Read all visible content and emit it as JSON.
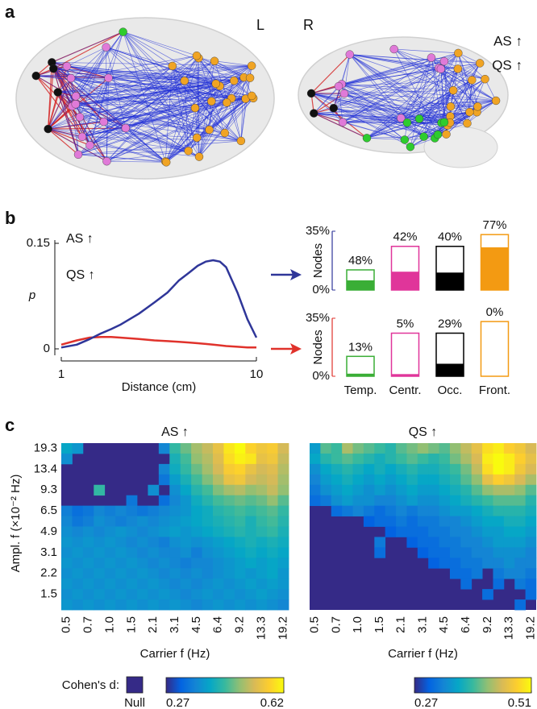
{
  "panel_labels": [
    "a",
    "b",
    "c"
  ],
  "brain": {
    "hemisphere_labels": [
      "L",
      "R"
    ],
    "legend": [
      {
        "name": "AS ↑",
        "color": "#e0322b"
      },
      {
        "name": "QS ↑",
        "color": "#2f3699"
      }
    ]
  },
  "chart_data": [
    {
      "type": "line",
      "x_label": "Distance (cm)",
      "y_label": "p",
      "xscale": "log",
      "x": [
        1,
        1.2,
        1.4,
        1.6,
        1.8,
        2,
        2.5,
        3,
        3.5,
        4,
        4.5,
        5,
        5.5,
        6,
        6.5,
        7,
        8,
        9,
        10
      ],
      "xlim": [
        1,
        10
      ],
      "xticks": [
        1,
        10
      ],
      "ylim": [
        0,
        0.15
      ],
      "yticks": [
        0,
        0.15
      ],
      "legend": "upper left",
      "series": [
        {
          "name": "AS ↑",
          "color": "#e0322b",
          "values": [
            0.006,
            0.012,
            0.016,
            0.017,
            0.017,
            0.016,
            0.014,
            0.012,
            0.011,
            0.01,
            0.009,
            0.008,
            0.007,
            0.006,
            0.005,
            0.004,
            0.003,
            0.002,
            0.002
          ]
        },
        {
          "name": "QS ↑",
          "color": "#2f3699",
          "values": [
            0.002,
            0.006,
            0.014,
            0.022,
            0.028,
            0.034,
            0.05,
            0.066,
            0.08,
            0.097,
            0.108,
            0.118,
            0.124,
            0.126,
            0.124,
            0.116,
            0.08,
            0.042,
            0.016
          ]
        }
      ]
    },
    {
      "type": "bar",
      "color": "#2f3699",
      "y_label": "Nodes",
      "category_colors": [
        "#3aae36",
        "#e0359a",
        "#000000",
        "#f39a12"
      ],
      "region_share": [
        12,
        26,
        26,
        33
      ],
      "values": [
        48,
        42,
        40,
        77
      ],
      "value_labels": [
        "48%",
        "42%",
        "40%",
        "77%"
      ],
      "ylim": [
        0,
        35
      ],
      "yticks": [
        {
          "value": 0,
          "label": "0%"
        },
        {
          "value": 35,
          "label": "35%"
        }
      ]
    },
    {
      "type": "bar",
      "color": "#e0322b",
      "y_label": "Nodes",
      "categories": [
        "Temp.",
        "Centr.",
        "Occ.",
        "Front."
      ],
      "category_colors": [
        "#3aae36",
        "#e0359a",
        "#000000",
        "#f39a12"
      ],
      "region_share": [
        12,
        26,
        26,
        33
      ],
      "values": [
        13,
        5,
        29,
        0
      ],
      "value_labels": [
        "13%",
        "5%",
        "29%",
        "0%"
      ],
      "ylim": [
        0,
        35
      ],
      "yticks": [
        {
          "value": 0,
          "label": "0%"
        },
        {
          "value": 35,
          "label": "35%"
        }
      ]
    },
    {
      "type": "heatmap",
      "title": "AS ↑",
      "title_color": "#e0322b",
      "x_label": "Carrier f (Hz)",
      "y_label": "Ampl. f (×10⁻² Hz)",
      "colorbar_label": "Cohen's d:",
      "null_label": "Null",
      "null_color": "#352a87",
      "colormap": "parula",
      "x_categories": [
        "0.5",
        null,
        "0.7",
        null,
        "1.0",
        null,
        "1.5",
        null,
        "2.1",
        null,
        "3.1",
        null,
        "4.5",
        null,
        "6.4",
        null,
        "9.2",
        null,
        "13.3",
        null,
        "19.2"
      ],
      "y_categories": [
        "19.3",
        null,
        "13.4",
        null,
        "9.3",
        null,
        "6.5",
        null,
        "4.9",
        null,
        "3.1",
        null,
        "2.2",
        null,
        "1.5",
        null
      ],
      "zlim": [
        0.27,
        0.62
      ],
      "zticks": [
        0.27,
        0.62
      ],
      "values": [
        [
          0.4,
          0.38,
          null,
          null,
          null,
          null,
          null,
          null,
          null,
          0.36,
          0.44,
          0.47,
          0.5,
          0.52,
          0.55,
          0.6,
          0.62,
          0.58,
          0.56,
          0.57,
          0.53
        ],
        [
          0.37,
          null,
          null,
          null,
          null,
          null,
          null,
          null,
          null,
          null,
          0.42,
          0.45,
          0.49,
          0.51,
          0.54,
          0.59,
          0.61,
          0.6,
          0.55,
          0.56,
          0.52
        ],
        [
          null,
          null,
          null,
          null,
          null,
          null,
          null,
          null,
          null,
          0.36,
          0.41,
          0.44,
          0.47,
          0.5,
          0.53,
          0.57,
          0.58,
          0.55,
          0.53,
          0.54,
          0.51
        ],
        [
          null,
          null,
          null,
          null,
          null,
          null,
          null,
          null,
          null,
          0.34,
          0.39,
          0.42,
          0.45,
          0.48,
          0.51,
          0.55,
          0.56,
          0.53,
          0.52,
          0.53,
          0.5
        ],
        [
          null,
          null,
          null,
          0.44,
          null,
          null,
          null,
          null,
          0.37,
          null,
          0.37,
          0.4,
          0.43,
          0.45,
          0.48,
          0.5,
          0.51,
          0.49,
          0.5,
          0.52,
          0.49
        ],
        [
          null,
          null,
          null,
          null,
          null,
          null,
          0.34,
          null,
          null,
          0.33,
          0.36,
          0.38,
          0.41,
          0.43,
          0.45,
          0.46,
          0.47,
          0.46,
          0.47,
          0.49,
          0.46
        ],
        [
          0.35,
          0.33,
          0.34,
          0.36,
          0.35,
          0.36,
          0.35,
          0.34,
          0.35,
          0.36,
          0.37,
          0.38,
          0.4,
          0.41,
          0.43,
          0.44,
          0.45,
          0.44,
          0.45,
          0.46,
          0.44
        ],
        [
          0.36,
          0.34,
          0.35,
          0.37,
          0.36,
          0.35,
          0.36,
          0.37,
          0.36,
          0.37,
          0.38,
          0.39,
          0.4,
          0.41,
          0.42,
          0.43,
          0.44,
          0.42,
          0.44,
          0.45,
          0.43
        ],
        [
          0.37,
          0.36,
          0.37,
          0.36,
          0.37,
          0.38,
          0.37,
          0.36,
          0.37,
          0.38,
          0.39,
          0.38,
          0.39,
          0.4,
          0.41,
          0.42,
          0.43,
          0.42,
          0.43,
          0.44,
          0.42
        ],
        [
          0.38,
          0.37,
          0.38,
          0.37,
          0.38,
          0.37,
          0.36,
          0.37,
          0.36,
          0.35,
          0.37,
          0.38,
          0.37,
          0.38,
          0.39,
          0.4,
          0.41,
          0.42,
          0.41,
          0.42,
          0.41
        ],
        [
          0.37,
          0.38,
          0.37,
          0.38,
          0.37,
          0.38,
          0.37,
          0.36,
          0.37,
          0.36,
          0.36,
          0.37,
          0.35,
          0.37,
          0.38,
          0.39,
          0.4,
          0.41,
          0.4,
          0.41,
          0.4
        ],
        [
          0.38,
          0.37,
          0.38,
          0.37,
          0.38,
          0.37,
          0.38,
          0.37,
          0.36,
          0.37,
          0.36,
          0.35,
          0.36,
          0.36,
          0.37,
          0.38,
          0.39,
          0.4,
          0.39,
          0.4,
          0.39
        ],
        [
          0.37,
          0.38,
          0.37,
          0.38,
          0.37,
          0.38,
          0.37,
          0.38,
          0.37,
          0.36,
          0.37,
          0.36,
          0.37,
          0.36,
          0.37,
          0.38,
          0.39,
          0.38,
          0.39,
          0.4,
          0.38
        ],
        [
          0.38,
          0.37,
          0.38,
          0.37,
          0.38,
          0.37,
          0.38,
          0.37,
          0.38,
          0.37,
          0.36,
          0.37,
          0.36,
          0.37,
          0.38,
          0.37,
          0.38,
          0.39,
          0.38,
          0.39,
          0.38
        ],
        [
          0.37,
          0.38,
          0.37,
          0.38,
          0.37,
          0.38,
          0.37,
          0.38,
          0.37,
          0.38,
          0.37,
          0.36,
          0.37,
          0.38,
          0.37,
          0.38,
          0.37,
          0.38,
          0.39,
          0.38,
          0.37
        ],
        [
          0.38,
          0.37,
          0.38,
          0.37,
          0.38,
          0.37,
          0.38,
          0.37,
          0.38,
          0.37,
          0.38,
          0.37,
          0.36,
          0.37,
          0.38,
          0.37,
          0.38,
          0.37,
          0.38,
          0.37,
          0.36
        ]
      ]
    },
    {
      "type": "heatmap",
      "title": "QS ↑",
      "title_color": "#2f3699",
      "x_label": "Carrier f (Hz)",
      "null_color": "#352a87",
      "colormap": "parula",
      "x_categories": [
        "0.5",
        null,
        "0.7",
        null,
        "1.0",
        null,
        "1.5",
        null,
        "2.1",
        null,
        "3.1",
        null,
        "4.5",
        null,
        "6.4",
        null,
        "9.2",
        null,
        "13.3",
        null,
        "19.2"
      ],
      "zlim": [
        0.27,
        0.51
      ],
      "zticks": [
        0.27,
        0.51
      ],
      "values": [
        [
          0.35,
          0.4,
          0.39,
          0.43,
          0.41,
          0.4,
          0.39,
          0.38,
          0.4,
          0.41,
          0.42,
          0.41,
          0.4,
          0.42,
          0.44,
          0.46,
          0.49,
          0.5,
          0.48,
          0.47,
          0.45
        ],
        [
          0.36,
          0.38,
          0.39,
          0.4,
          0.39,
          0.38,
          0.37,
          0.38,
          0.39,
          0.4,
          0.39,
          0.38,
          0.39,
          0.41,
          0.43,
          0.45,
          0.5,
          0.51,
          0.5,
          0.48,
          0.46
        ],
        [
          0.34,
          0.36,
          0.37,
          0.38,
          0.37,
          0.36,
          0.37,
          0.36,
          0.37,
          0.38,
          0.37,
          0.37,
          0.38,
          0.39,
          0.41,
          0.44,
          0.49,
          0.51,
          0.5,
          0.47,
          0.45
        ],
        [
          0.33,
          0.35,
          0.36,
          0.37,
          0.36,
          0.35,
          0.36,
          0.35,
          0.36,
          0.37,
          0.36,
          0.36,
          0.37,
          0.38,
          0.4,
          0.42,
          0.46,
          0.48,
          0.47,
          0.45,
          0.43
        ],
        [
          0.32,
          0.34,
          0.35,
          0.36,
          0.35,
          0.34,
          0.35,
          0.34,
          0.35,
          0.36,
          0.35,
          0.35,
          0.36,
          0.37,
          0.38,
          0.4,
          0.42,
          0.43,
          0.43,
          0.42,
          0.4
        ],
        [
          0.31,
          0.32,
          0.34,
          0.35,
          0.34,
          0.34,
          0.33,
          0.33,
          0.34,
          0.35,
          0.34,
          0.34,
          0.35,
          0.36,
          0.37,
          0.38,
          0.39,
          0.4,
          0.4,
          0.4,
          0.38
        ],
        [
          null,
          null,
          0.31,
          0.32,
          0.33,
          0.32,
          0.31,
          0.32,
          0.33,
          0.32,
          0.33,
          0.33,
          0.34,
          0.35,
          0.35,
          0.36,
          0.37,
          0.38,
          0.38,
          0.38,
          0.37
        ],
        [
          null,
          null,
          null,
          null,
          null,
          0.3,
          0.31,
          0.31,
          0.32,
          0.31,
          0.32,
          0.32,
          0.33,
          0.33,
          0.34,
          0.35,
          0.36,
          0.36,
          0.37,
          0.37,
          0.36
        ],
        [
          null,
          null,
          null,
          null,
          null,
          null,
          null,
          0.3,
          0.31,
          0.31,
          0.31,
          0.32,
          0.32,
          0.33,
          0.33,
          0.34,
          0.35,
          0.35,
          0.36,
          0.36,
          0.35
        ],
        [
          null,
          null,
          null,
          null,
          null,
          null,
          0.32,
          null,
          null,
          0.3,
          0.31,
          0.31,
          0.32,
          0.32,
          0.33,
          0.33,
          0.34,
          0.35,
          0.35,
          0.35,
          0.34
        ],
        [
          null,
          null,
          null,
          null,
          null,
          null,
          0.31,
          null,
          null,
          null,
          0.3,
          0.31,
          0.31,
          0.32,
          0.32,
          0.33,
          0.33,
          0.34,
          0.34,
          0.34,
          0.33
        ],
        [
          null,
          null,
          null,
          null,
          null,
          null,
          null,
          null,
          null,
          null,
          null,
          0.3,
          0.31,
          0.31,
          0.32,
          0.32,
          0.33,
          0.33,
          0.34,
          0.33,
          0.33
        ],
        [
          null,
          null,
          null,
          null,
          null,
          null,
          null,
          null,
          null,
          null,
          null,
          null,
          null,
          0.31,
          0.31,
          0.32,
          null,
          0.32,
          0.33,
          0.33,
          0.32
        ],
        [
          null,
          null,
          null,
          null,
          null,
          null,
          null,
          null,
          null,
          null,
          null,
          null,
          null,
          null,
          0.31,
          null,
          null,
          0.31,
          null,
          0.32,
          0.31
        ],
        [
          null,
          null,
          null,
          null,
          null,
          null,
          null,
          null,
          null,
          null,
          null,
          null,
          null,
          null,
          null,
          null,
          0.31,
          null,
          null,
          null,
          0.31
        ],
        [
          null,
          null,
          null,
          null,
          null,
          null,
          null,
          null,
          null,
          null,
          null,
          null,
          null,
          null,
          null,
          null,
          null,
          null,
          null,
          0.31,
          null
        ]
      ]
    }
  ]
}
